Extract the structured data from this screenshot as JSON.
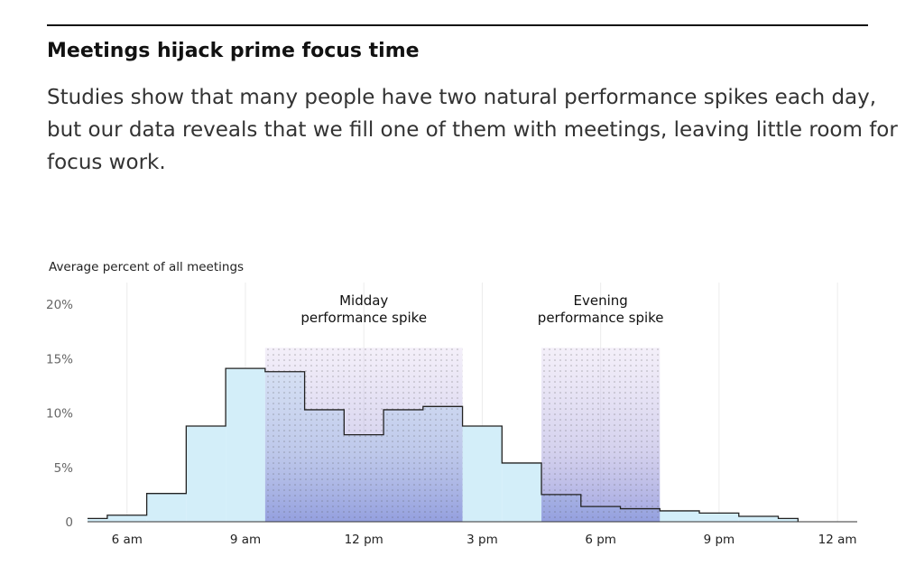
{
  "headline": "Meetings hijack prime focus time",
  "body_lines": [
    "Studies show that many people have two natural performance spikes each day,",
    "but our data reveals that we fill one of them with meetings, leaving little room for",
    "focus work."
  ],
  "chart_data": {
    "type": "histogram",
    "y_label": "Average percent of all meetings",
    "bins": [
      5,
      5.5,
      6.5,
      7.5,
      8.5,
      9.5,
      10.5,
      11.5,
      12.5,
      13.5,
      14.5,
      15.5,
      16.5,
      17.5,
      18.5,
      19.5,
      20.5,
      21.5,
      22.5,
      23
    ],
    "values": [
      0.3,
      0.6,
      2.6,
      8.8,
      14.1,
      13.8,
      10.3,
      8.0,
      10.3,
      10.6,
      8.8,
      5.4,
      2.5,
      1.4,
      1.2,
      1.0,
      0.8,
      0.5,
      0.3
    ],
    "color": "#d3eef9",
    "xlim": [
      5,
      24.5
    ],
    "xticks": [
      {
        "value": 6,
        "label": "6 am"
      },
      {
        "value": 9,
        "label": "9 am"
      },
      {
        "value": 12,
        "label": "12 pm"
      },
      {
        "value": 15,
        "label": "3 pm"
      },
      {
        "value": 18,
        "label": "6 pm"
      },
      {
        "value": 21,
        "label": "9 pm"
      },
      {
        "value": 24,
        "label": "12 am"
      }
    ],
    "ylim": [
      0,
      22
    ],
    "yticks": [
      0,
      {
        "value": 5,
        "label": "5%"
      },
      {
        "value": 10,
        "label": "10%"
      },
      {
        "value": 15,
        "label": "15%"
      },
      {
        "value": 20,
        "label": "20%"
      }
    ],
    "grid": true,
    "highlights": [
      {
        "label_lines": [
          "Midday",
          "performance spike"
        ],
        "x": [
          9.5,
          14.5
        ],
        "top": 16
      },
      {
        "label_lines": [
          "Evening",
          "performance spike"
        ],
        "x": [
          16.5,
          19.5
        ],
        "top": 16
      }
    ]
  }
}
